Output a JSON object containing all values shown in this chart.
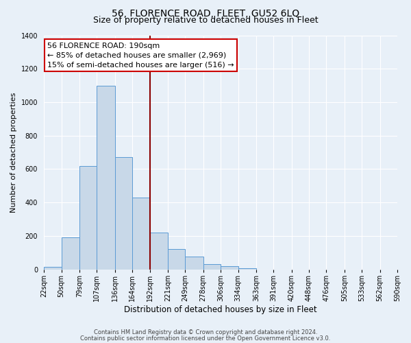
{
  "title": "56, FLORENCE ROAD, FLEET, GU52 6LQ",
  "subtitle": "Size of property relative to detached houses in Fleet",
  "xlabel": "Distribution of detached houses by size in Fleet",
  "ylabel": "Number of detached properties",
  "footer_lines": [
    "Contains HM Land Registry data © Crown copyright and database right 2024.",
    "Contains public sector information licensed under the Open Government Licence v3.0."
  ],
  "bin_labels": [
    "22sqm",
    "50sqm",
    "79sqm",
    "107sqm",
    "136sqm",
    "164sqm",
    "192sqm",
    "221sqm",
    "249sqm",
    "278sqm",
    "306sqm",
    "334sqm",
    "363sqm",
    "391sqm",
    "420sqm",
    "448sqm",
    "476sqm",
    "505sqm",
    "533sqm",
    "562sqm",
    "590sqm"
  ],
  "bin_edges": [
    22,
    50,
    79,
    107,
    136,
    164,
    192,
    221,
    249,
    278,
    306,
    334,
    363,
    391,
    420,
    448,
    476,
    505,
    533,
    562,
    590
  ],
  "bar_heights": [
    15,
    190,
    620,
    1100,
    670,
    430,
    220,
    120,
    75,
    30,
    20,
    5,
    0,
    0,
    0,
    0,
    0,
    0,
    0,
    0
  ],
  "bar_color": "#c8d8e8",
  "bar_edge_color": "#5b9bd5",
  "vline_x": 192,
  "vline_color": "#8b0000",
  "ylim": [
    0,
    1400
  ],
  "yticks": [
    0,
    200,
    400,
    600,
    800,
    1000,
    1200,
    1400
  ],
  "annotation_box_text": "56 FLORENCE ROAD: 190sqm\n← 85% of detached houses are smaller (2,969)\n15% of semi-detached houses are larger (516) →",
  "background_color": "#e8f0f8",
  "grid_color": "#ffffff",
  "title_fontsize": 10,
  "subtitle_fontsize": 9,
  "annotation_fontsize": 8,
  "ylabel_fontsize": 8,
  "xlabel_fontsize": 8.5,
  "tick_fontsize": 7,
  "footer_fontsize": 6
}
